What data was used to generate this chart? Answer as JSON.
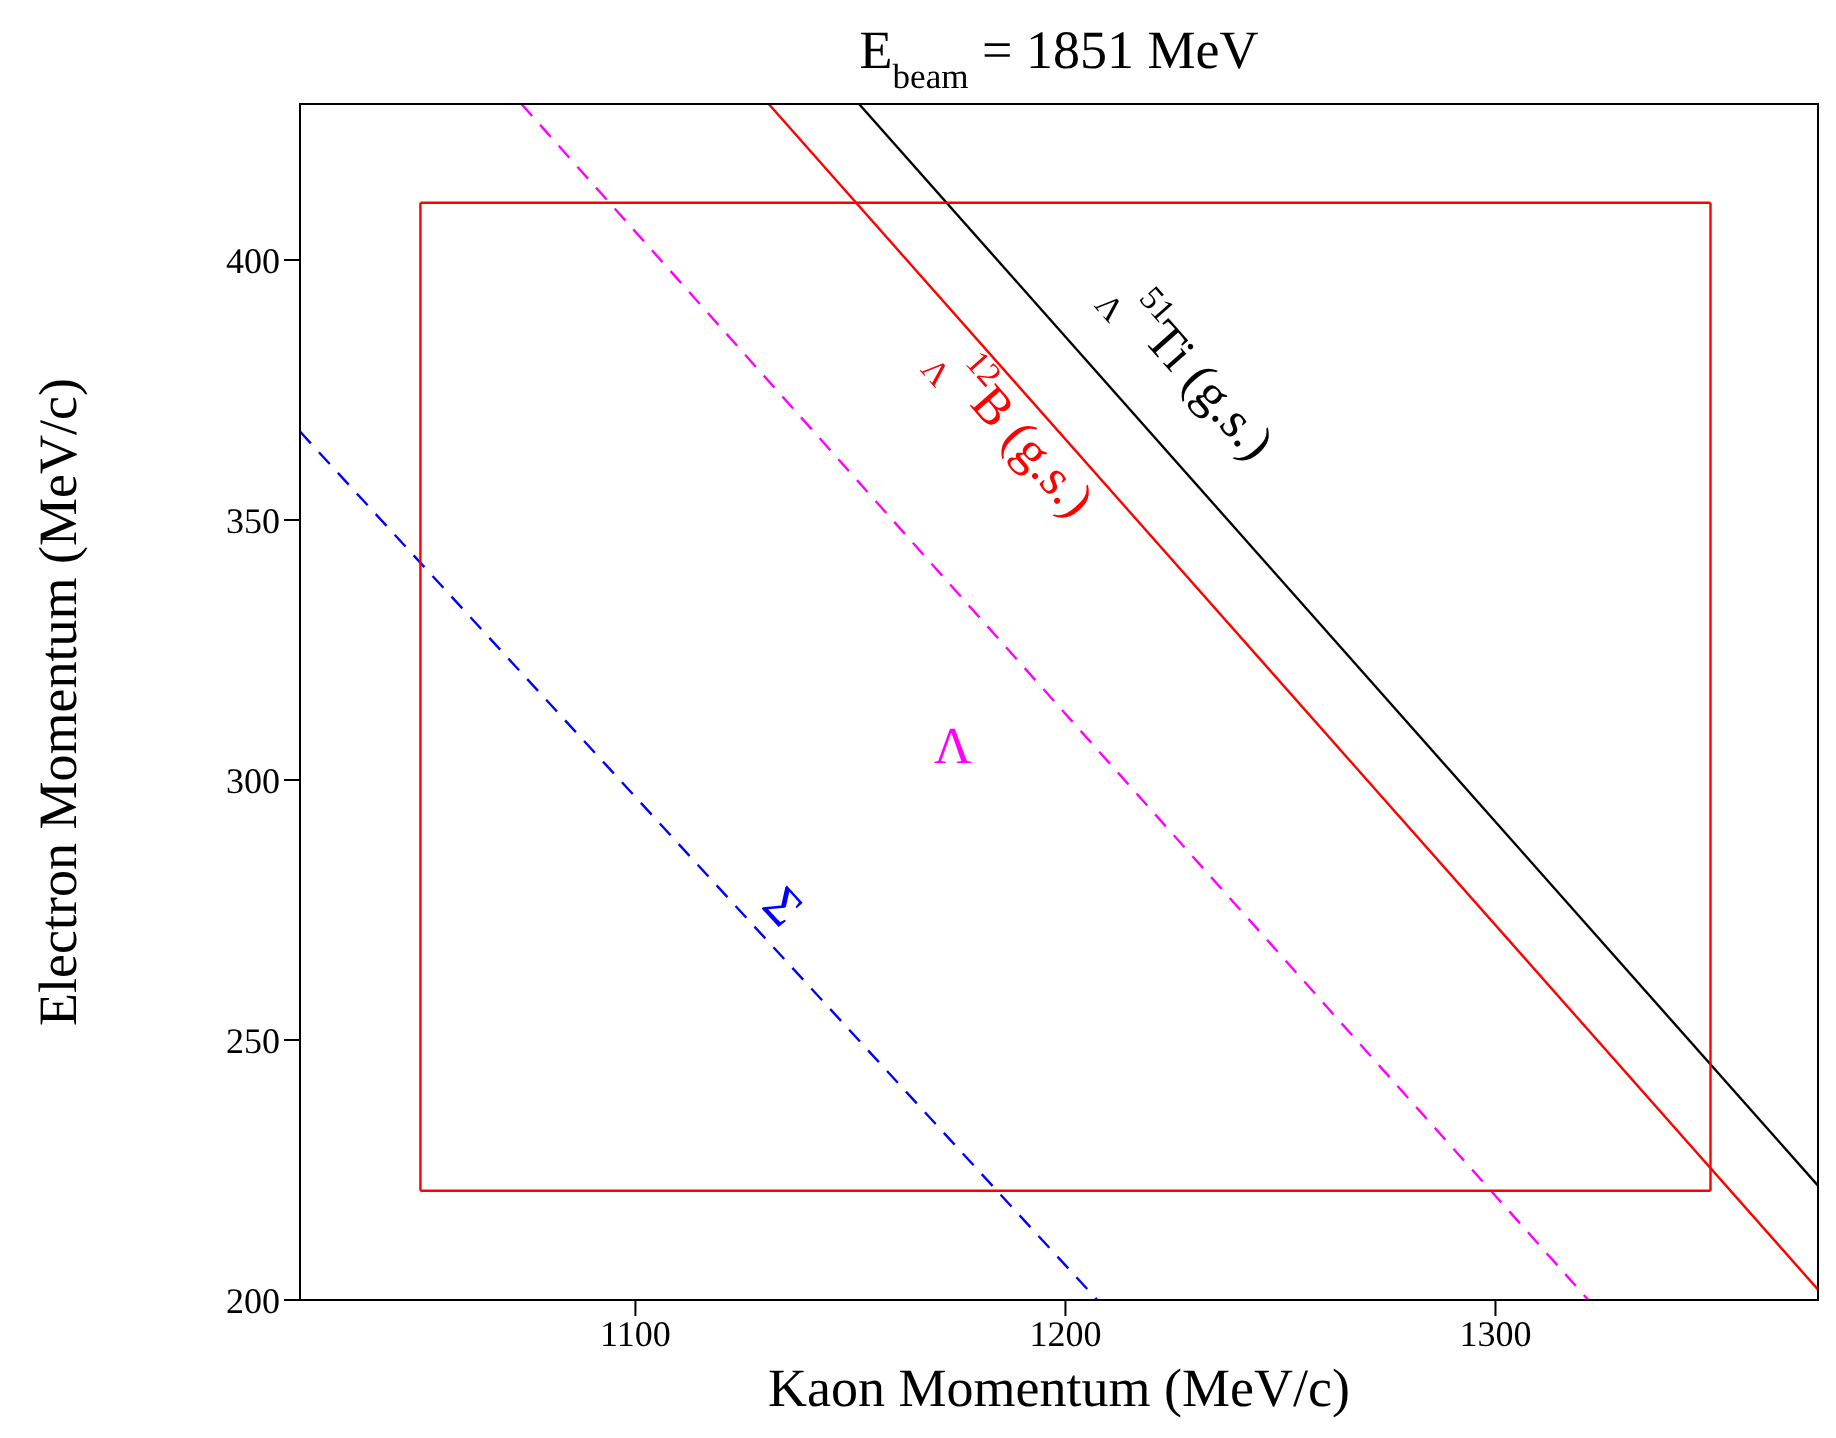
{
  "chart_data": {
    "type": "line",
    "title": "E$_{beam}$ = 1851 MeV",
    "xlabel": "Kaon Momentum (MeV/c)",
    "ylabel": "Electron Momentum (MeV/c)",
    "xlim": [
      1022,
      1375
    ],
    "xticks": [
      1100,
      1200,
      1300
    ],
    "ylim": [
      200,
      430
    ],
    "yticks": [
      200,
      250,
      300,
      350,
      400
    ],
    "marker": "none",
    "series": [
      {
        "name": "$_{Λ}$$^{51}$Ti (g.s.)",
        "color": "#000000",
        "line_style": "solid",
        "x": [
          1152,
          1375
        ],
        "values": [
          430,
          222
        ]
      },
      {
        "name": "$_{Λ}$$^{12}$B (g.s.)",
        "color": "#ff0000",
        "line_style": "solid",
        "x": [
          1131,
          1375
        ],
        "values": [
          430,
          202
        ]
      },
      {
        "name": "Λ",
        "color": "#ff00ff",
        "line_style": "dashed",
        "x": [
          1073.5,
          1321.6
        ],
        "values": [
          430,
          200
        ]
      },
      {
        "name": "Σ",
        "color": "#0000ff",
        "line_style": "dashed",
        "x": [
          1022,
          1207.4
        ],
        "values": [
          367,
          200
        ]
      },
      {
        "color": "#ff0000",
        "line_style": "solid",
        "x": [
          1050,
          1350
        ],
        "values": [
          221,
          221
        ]
      },
      {
        "color": "#ff0000",
        "line_style": "solid",
        "x": [
          1050,
          1350
        ],
        "values": [
          411,
          411
        ]
      },
      {
        "color": "#ff0000",
        "line_style": "solid",
        "x": [
          1050,
          1050
        ],
        "values": [
          221,
          411
        ]
      },
      {
        "color": "#ff0000",
        "line_style": "solid",
        "x": [
          1350,
          1350
        ],
        "values": [
          221,
          411
        ]
      }
    ]
  }
}
